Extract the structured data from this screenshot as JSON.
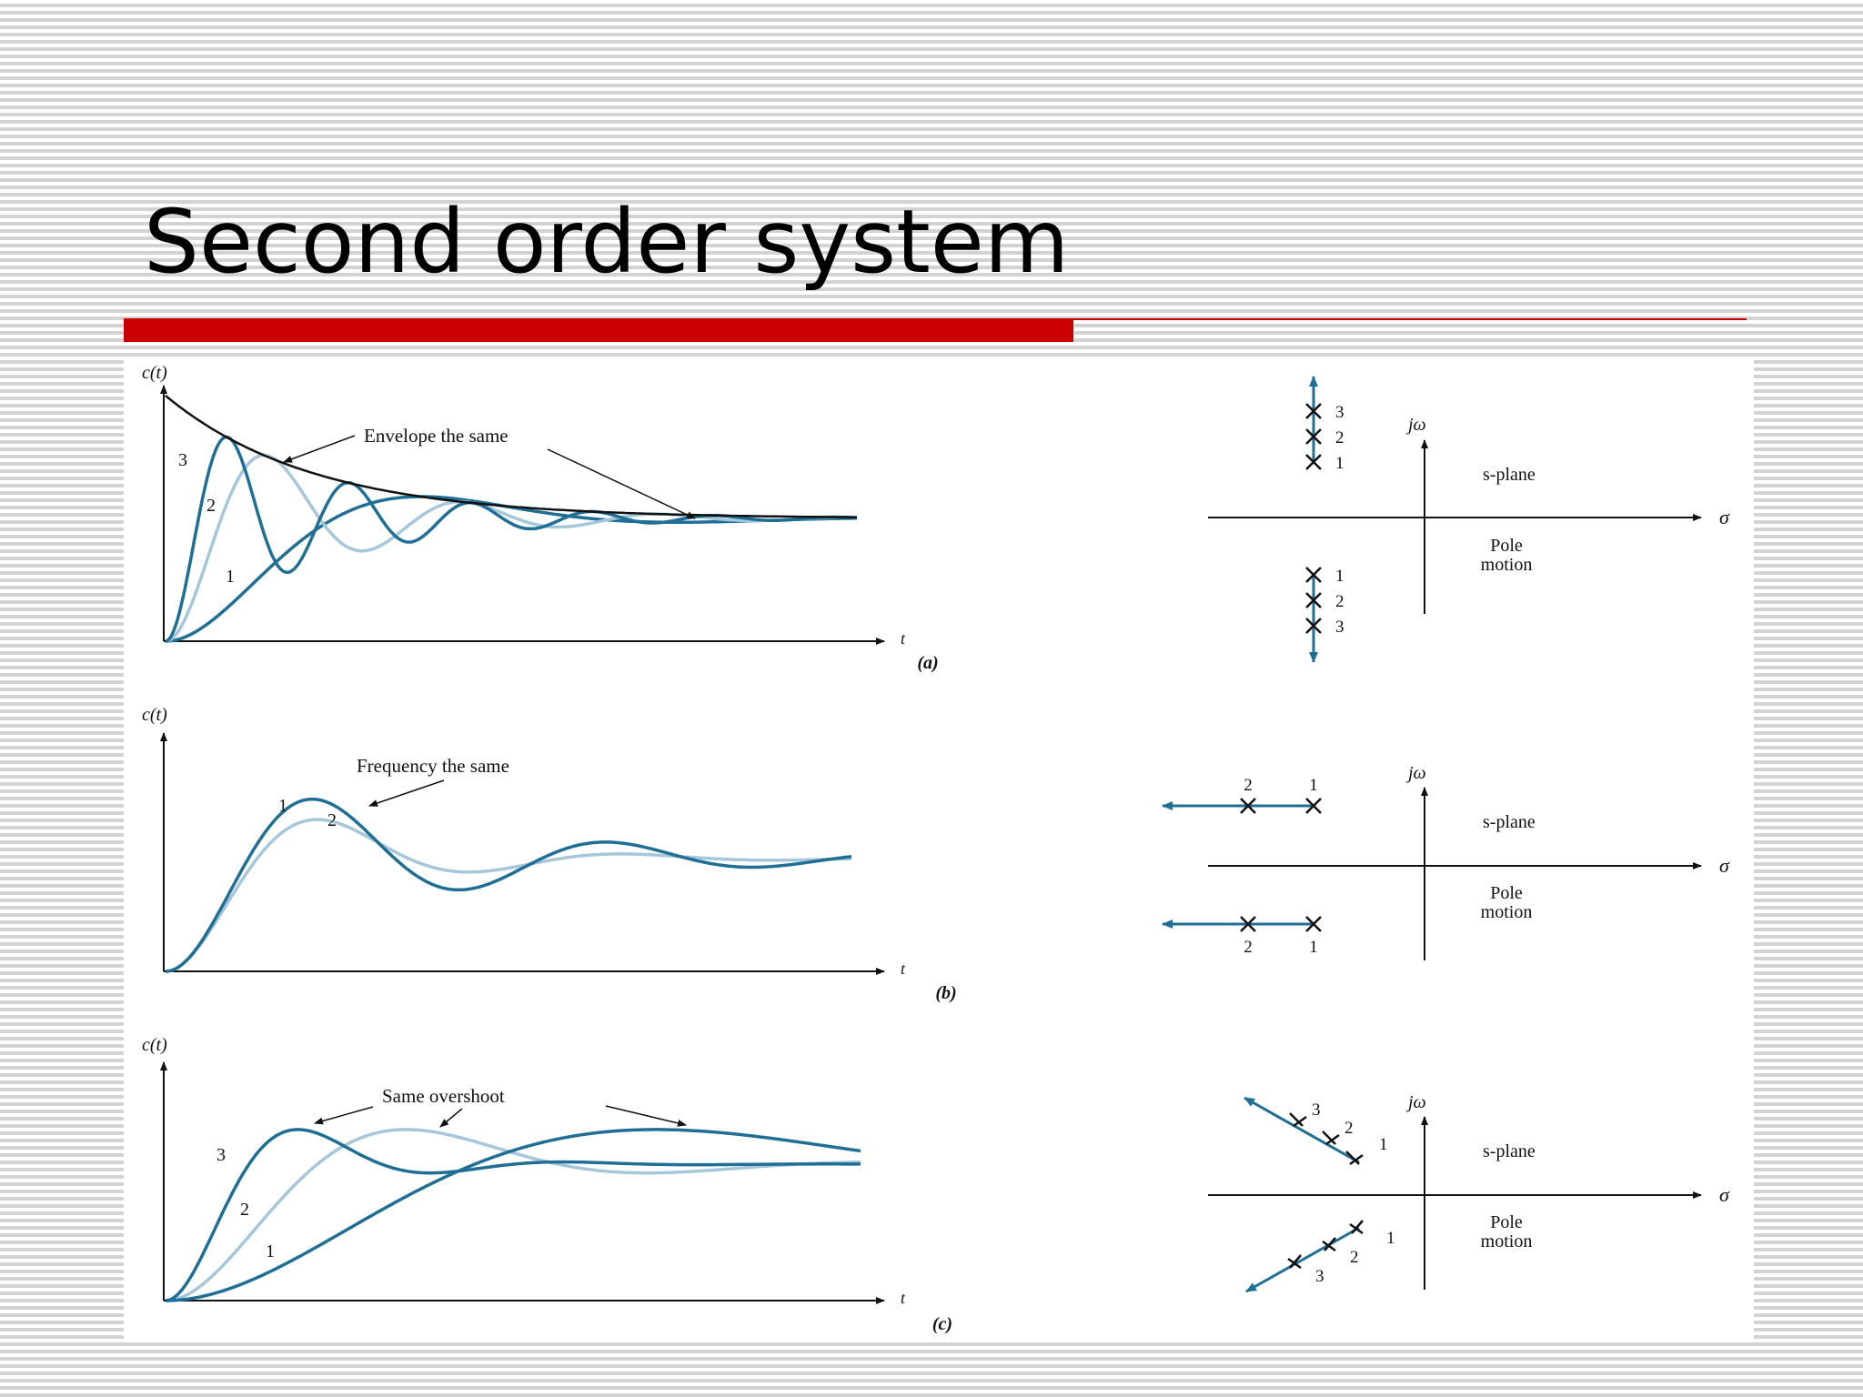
{
  "slide": {
    "title": "Second order system",
    "colors": {
      "accent_bar": "#cc0000",
      "curve_dark": "#1f6e96",
      "curve_light": "#a6c7db",
      "envelope": "#111111"
    }
  },
  "panels": [
    {
      "id": "a",
      "caption": "(a)",
      "ylabel": "c(t)",
      "xlabel": "t",
      "annotation": "Envelope the same",
      "curve_labels": [
        "1",
        "2",
        "3"
      ],
      "splane": {
        "jw_label": "jω",
        "sigma_label": "σ",
        "plane_label": "s-plane",
        "motion_label_1": "Pole",
        "motion_label_2": "motion",
        "upper_pole_labels": [
          "3",
          "2",
          "1"
        ],
        "lower_pole_labels": [
          "1",
          "2",
          "3"
        ]
      }
    },
    {
      "id": "b",
      "caption": "(b)",
      "ylabel": "c(t)",
      "xlabel": "t",
      "annotation": "Frequency the same",
      "curve_labels": [
        "1",
        "2"
      ],
      "splane": {
        "jw_label": "jω",
        "sigma_label": "σ",
        "plane_label": "s-plane",
        "motion_label_1": "Pole",
        "motion_label_2": "motion",
        "upper_pole_labels": [
          "2",
          "1"
        ],
        "lower_pole_labels": [
          "2",
          "1"
        ]
      }
    },
    {
      "id": "c",
      "caption": "(c)",
      "ylabel": "c(t)",
      "xlabel": "t",
      "annotation": "Same overshoot",
      "curve_labels": [
        "1",
        "2",
        "3"
      ],
      "splane": {
        "jw_label": "jω",
        "sigma_label": "σ",
        "plane_label": "s-plane",
        "motion_label_1": "Pole",
        "motion_label_2": "motion",
        "upper_pole_labels": [
          "3",
          "2",
          "1"
        ],
        "lower_pole_labels": [
          "1",
          "2",
          "3"
        ]
      }
    }
  ]
}
